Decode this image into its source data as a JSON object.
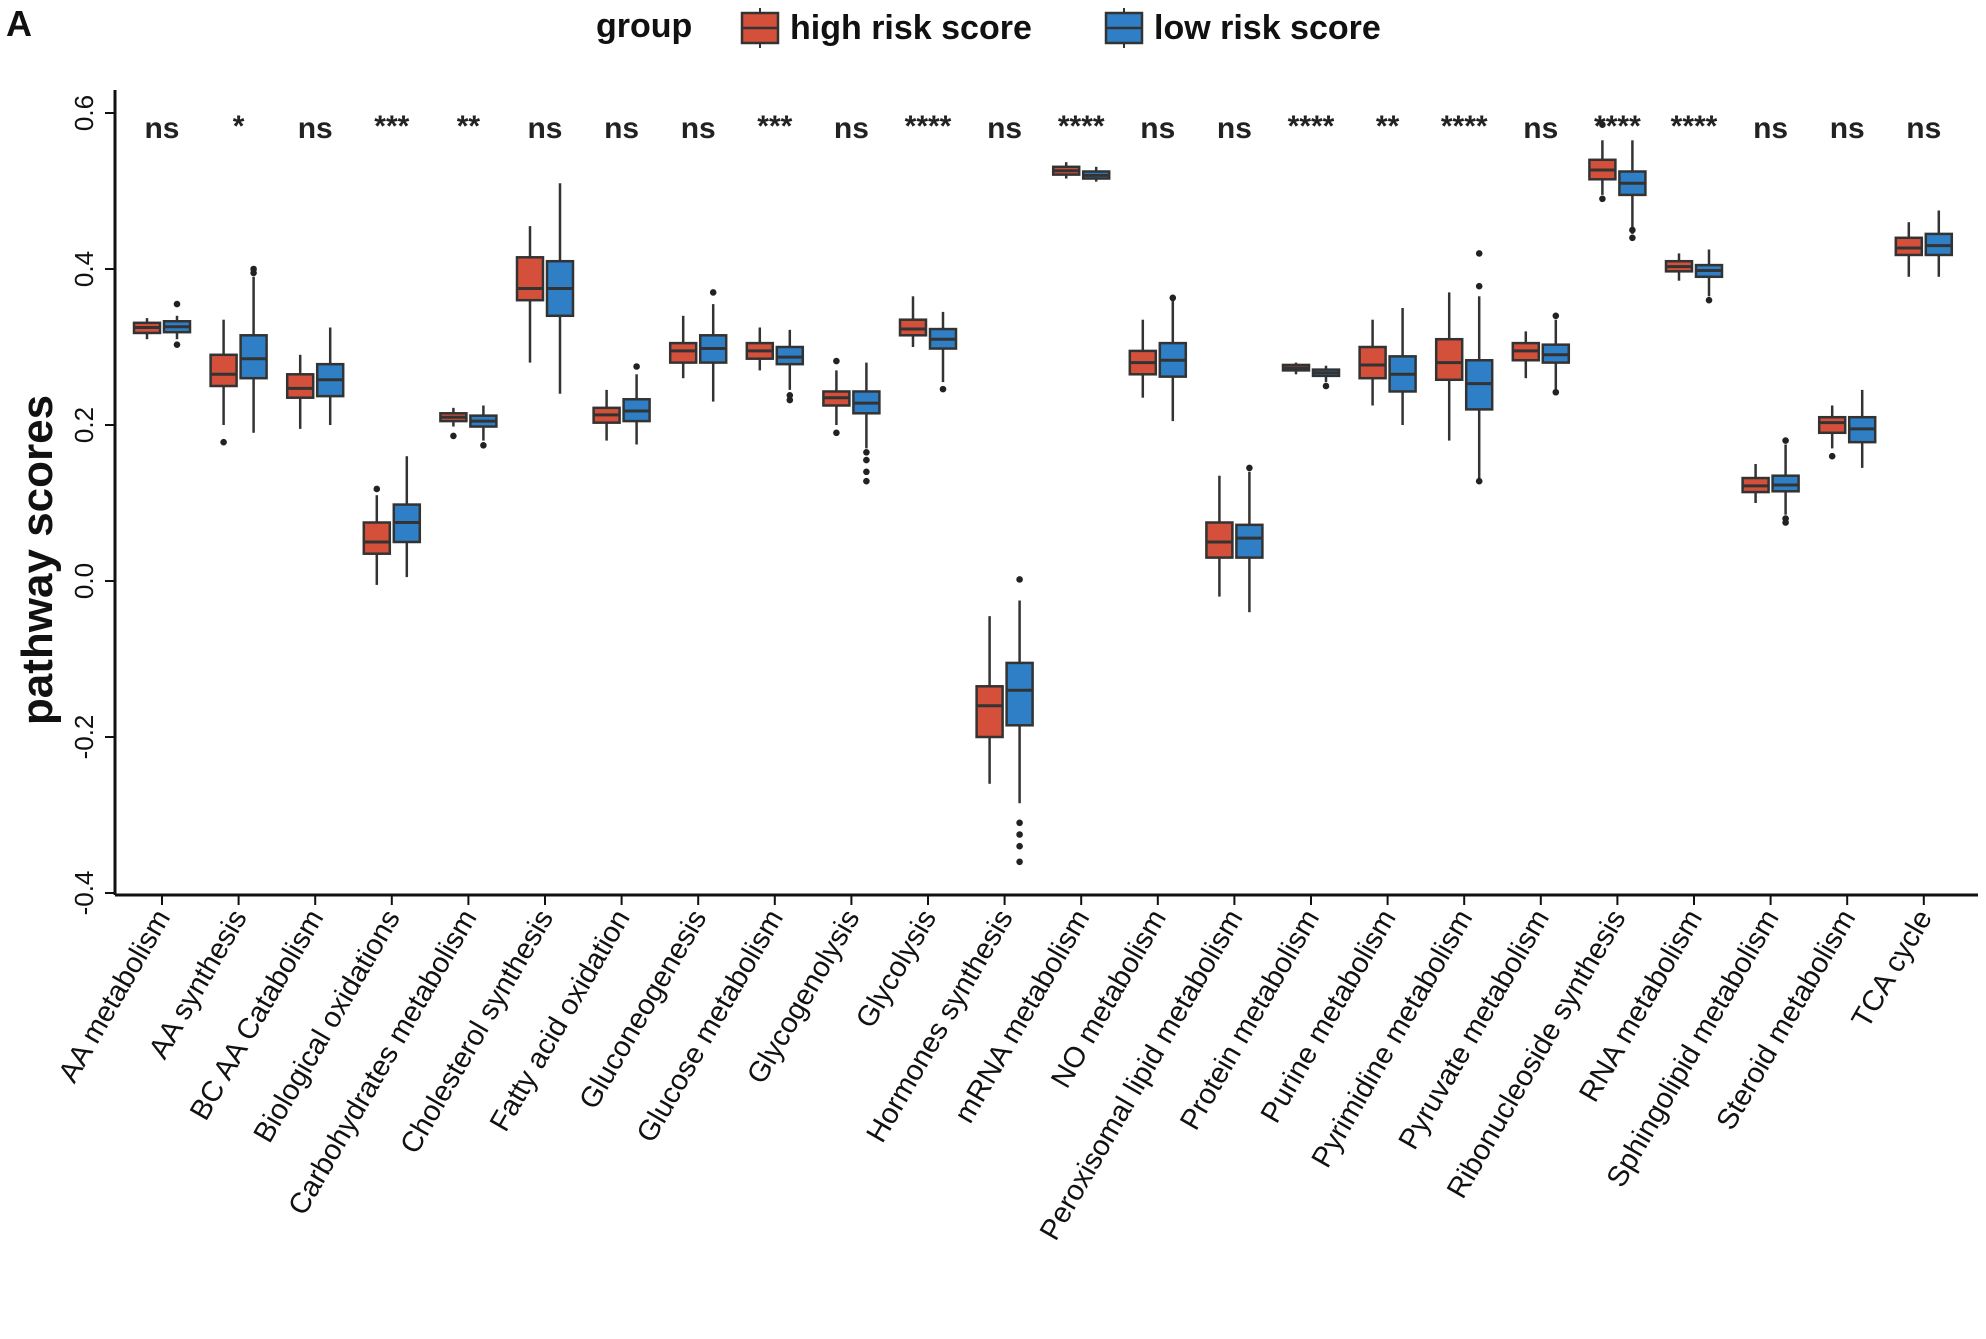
{
  "chart_data": {
    "type": "boxplot",
    "panel_label": "A",
    "legend": {
      "title": "group",
      "entries": [
        {
          "name": "high risk score",
          "color": "#d4503b"
        },
        {
          "name": "low risk score",
          "color": "#2e7fc5"
        }
      ],
      "placement": "top-center"
    },
    "ylabel": "pathway scores",
    "xlabel": "",
    "ylim": [
      -0.4,
      0.62
    ],
    "yticks": [
      -0.4,
      -0.2,
      0.0,
      0.2,
      0.4,
      0.6
    ],
    "ytick_labels": [
      "-0.4",
      "-0.2",
      "0.0",
      "0.2",
      "0.4",
      "0.6"
    ],
    "categories": [
      {
        "name": "AA metabolism",
        "sig": "ns",
        "high": {
          "wmin": 0.31,
          "q1": 0.318,
          "med": 0.325,
          "q3": 0.331,
          "wmax": 0.337,
          "out": []
        },
        "low": {
          "wmin": 0.31,
          "q1": 0.319,
          "med": 0.326,
          "q3": 0.333,
          "wmax": 0.34,
          "out": [
            0.303,
            0.355
          ]
        }
      },
      {
        "name": "AA synthesis",
        "sig": "*",
        "high": {
          "wmin": 0.2,
          "q1": 0.25,
          "med": 0.265,
          "q3": 0.29,
          "wmax": 0.335,
          "out": [
            0.178
          ]
        },
        "low": {
          "wmin": 0.19,
          "q1": 0.26,
          "med": 0.285,
          "q3": 0.315,
          "wmax": 0.39,
          "out": [
            0.4,
            0.395
          ]
        }
      },
      {
        "name": "BC AA Catabolism",
        "sig": "ns",
        "high": {
          "wmin": 0.195,
          "q1": 0.235,
          "med": 0.247,
          "q3": 0.265,
          "wmax": 0.29,
          "out": []
        },
        "low": {
          "wmin": 0.2,
          "q1": 0.237,
          "med": 0.258,
          "q3": 0.278,
          "wmax": 0.325,
          "out": []
        }
      },
      {
        "name": "Biological oxidations",
        "sig": "***",
        "high": {
          "wmin": -0.005,
          "q1": 0.035,
          "med": 0.05,
          "q3": 0.075,
          "wmax": 0.11,
          "out": [
            0.118
          ]
        },
        "low": {
          "wmin": 0.005,
          "q1": 0.05,
          "med": 0.075,
          "q3": 0.098,
          "wmax": 0.16,
          "out": []
        }
      },
      {
        "name": "Carbohydrates metabolism",
        "sig": "**",
        "high": {
          "wmin": 0.198,
          "q1": 0.205,
          "med": 0.21,
          "q3": 0.215,
          "wmax": 0.222,
          "out": [
            0.186
          ]
        },
        "low": {
          "wmin": 0.18,
          "q1": 0.198,
          "med": 0.205,
          "q3": 0.212,
          "wmax": 0.225,
          "out": [
            0.174
          ]
        }
      },
      {
        "name": "Cholesterol synthesis",
        "sig": "ns",
        "high": {
          "wmin": 0.28,
          "q1": 0.36,
          "med": 0.375,
          "q3": 0.415,
          "wmax": 0.455,
          "out": []
        },
        "low": {
          "wmin": 0.24,
          "q1": 0.34,
          "med": 0.375,
          "q3": 0.41,
          "wmax": 0.51,
          "out": []
        }
      },
      {
        "name": "Fatty acid oxidation",
        "sig": "ns",
        "high": {
          "wmin": 0.18,
          "q1": 0.203,
          "med": 0.213,
          "q3": 0.222,
          "wmax": 0.245,
          "out": []
        },
        "low": {
          "wmin": 0.175,
          "q1": 0.205,
          "med": 0.218,
          "q3": 0.233,
          "wmax": 0.265,
          "out": [
            0.275
          ]
        }
      },
      {
        "name": "Gluconeogenesis",
        "sig": "ns",
        "high": {
          "wmin": 0.26,
          "q1": 0.28,
          "med": 0.295,
          "q3": 0.305,
          "wmax": 0.34,
          "out": []
        },
        "low": {
          "wmin": 0.23,
          "q1": 0.28,
          "med": 0.298,
          "q3": 0.315,
          "wmax": 0.355,
          "out": [
            0.37
          ]
        }
      },
      {
        "name": "Glucose metabolism",
        "sig": "***",
        "high": {
          "wmin": 0.27,
          "q1": 0.285,
          "med": 0.295,
          "q3": 0.305,
          "wmax": 0.325,
          "out": []
        },
        "low": {
          "wmin": 0.245,
          "q1": 0.278,
          "med": 0.287,
          "q3": 0.3,
          "wmax": 0.322,
          "out": [
            0.238,
            0.232
          ]
        }
      },
      {
        "name": "Glycogenolysis",
        "sig": "ns",
        "high": {
          "wmin": 0.2,
          "q1": 0.225,
          "med": 0.235,
          "q3": 0.243,
          "wmax": 0.27,
          "out": [
            0.19,
            0.282
          ]
        },
        "low": {
          "wmin": 0.17,
          "q1": 0.215,
          "med": 0.228,
          "q3": 0.243,
          "wmax": 0.28,
          "out": [
            0.165,
            0.155,
            0.14,
            0.128
          ]
        }
      },
      {
        "name": "Glycolysis",
        "sig": "****",
        "high": {
          "wmin": 0.3,
          "q1": 0.315,
          "med": 0.323,
          "q3": 0.335,
          "wmax": 0.365,
          "out": []
        },
        "low": {
          "wmin": 0.255,
          "q1": 0.298,
          "med": 0.31,
          "q3": 0.323,
          "wmax": 0.345,
          "out": [
            0.246
          ]
        }
      },
      {
        "name": "Hormones synthesis",
        "sig": "ns",
        "high": {
          "wmin": -0.26,
          "q1": -0.2,
          "med": -0.16,
          "q3": -0.135,
          "wmax": -0.045,
          "out": []
        },
        "low": {
          "wmin": -0.285,
          "q1": -0.185,
          "med": -0.14,
          "q3": -0.105,
          "wmax": -0.025,
          "out": [
            0.002,
            -0.31,
            -0.325,
            -0.34,
            -0.36
          ]
        }
      },
      {
        "name": "mRNA metabolism",
        "sig": "****",
        "high": {
          "wmin": 0.516,
          "q1": 0.521,
          "med": 0.526,
          "q3": 0.531,
          "wmax": 0.537,
          "out": []
        },
        "low": {
          "wmin": 0.512,
          "q1": 0.516,
          "med": 0.52,
          "q3": 0.525,
          "wmax": 0.531,
          "out": []
        }
      },
      {
        "name": "NO metabolism",
        "sig": "ns",
        "high": {
          "wmin": 0.235,
          "q1": 0.265,
          "med": 0.28,
          "q3": 0.295,
          "wmax": 0.335,
          "out": []
        },
        "low": {
          "wmin": 0.205,
          "q1": 0.262,
          "med": 0.283,
          "q3": 0.305,
          "wmax": 0.36,
          "out": [
            0.363
          ]
        }
      },
      {
        "name": "Peroxisomal lipid metabolism",
        "sig": "ns",
        "high": {
          "wmin": -0.02,
          "q1": 0.03,
          "med": 0.05,
          "q3": 0.075,
          "wmax": 0.135,
          "out": []
        },
        "low": {
          "wmin": -0.04,
          "q1": 0.03,
          "med": 0.055,
          "q3": 0.072,
          "wmax": 0.14,
          "out": [
            0.145
          ]
        }
      },
      {
        "name": "Protein metabolism",
        "sig": "****",
        "high": {
          "wmin": 0.265,
          "q1": 0.27,
          "med": 0.273,
          "q3": 0.277,
          "wmax": 0.28,
          "out": []
        },
        "low": {
          "wmin": 0.255,
          "q1": 0.263,
          "med": 0.267,
          "q3": 0.271,
          "wmax": 0.276,
          "out": [
            0.25
          ]
        }
      },
      {
        "name": "Purine metabolism",
        "sig": "**",
        "high": {
          "wmin": 0.225,
          "q1": 0.26,
          "med": 0.277,
          "q3": 0.3,
          "wmax": 0.335,
          "out": []
        },
        "low": {
          "wmin": 0.2,
          "q1": 0.243,
          "med": 0.265,
          "q3": 0.288,
          "wmax": 0.35,
          "out": []
        }
      },
      {
        "name": "Pyrimidine metabolism",
        "sig": "****",
        "high": {
          "wmin": 0.18,
          "q1": 0.258,
          "med": 0.28,
          "q3": 0.31,
          "wmax": 0.37,
          "out": []
        },
        "low": {
          "wmin": 0.13,
          "q1": 0.22,
          "med": 0.253,
          "q3": 0.283,
          "wmax": 0.365,
          "out": [
            0.378,
            0.42,
            0.128
          ]
        }
      },
      {
        "name": "Pyruvate metabolism",
        "sig": "ns",
        "high": {
          "wmin": 0.26,
          "q1": 0.283,
          "med": 0.295,
          "q3": 0.305,
          "wmax": 0.32,
          "out": []
        },
        "low": {
          "wmin": 0.24,
          "q1": 0.28,
          "med": 0.29,
          "q3": 0.303,
          "wmax": 0.335,
          "out": [
            0.34,
            0.242
          ]
        }
      },
      {
        "name": "Ribonucleoside synthesis",
        "sig": "****",
        "high": {
          "wmin": 0.495,
          "q1": 0.515,
          "med": 0.527,
          "q3": 0.54,
          "wmax": 0.565,
          "out": [
            0.585,
            0.49
          ]
        },
        "low": {
          "wmin": 0.445,
          "q1": 0.495,
          "med": 0.51,
          "q3": 0.525,
          "wmax": 0.565,
          "out": [
            0.44,
            0.45
          ]
        }
      },
      {
        "name": "RNA metabolism",
        "sig": "****",
        "high": {
          "wmin": 0.385,
          "q1": 0.397,
          "med": 0.403,
          "q3": 0.41,
          "wmax": 0.42,
          "out": []
        },
        "low": {
          "wmin": 0.365,
          "q1": 0.39,
          "med": 0.398,
          "q3": 0.405,
          "wmax": 0.425,
          "out": [
            0.36
          ]
        }
      },
      {
        "name": "Sphingolipid metabolism",
        "sig": "ns",
        "high": {
          "wmin": 0.1,
          "q1": 0.114,
          "med": 0.122,
          "q3": 0.132,
          "wmax": 0.15,
          "out": []
        },
        "low": {
          "wmin": 0.085,
          "q1": 0.115,
          "med": 0.123,
          "q3": 0.135,
          "wmax": 0.175,
          "out": [
            0.075,
            0.08,
            0.18
          ]
        }
      },
      {
        "name": "Steroid metabolism",
        "sig": "ns",
        "high": {
          "wmin": 0.17,
          "q1": 0.19,
          "med": 0.203,
          "q3": 0.21,
          "wmax": 0.225,
          "out": [
            0.16
          ]
        },
        "low": {
          "wmin": 0.145,
          "q1": 0.178,
          "med": 0.195,
          "q3": 0.21,
          "wmax": 0.245,
          "out": []
        }
      },
      {
        "name": "TCA cycle",
        "sig": "ns",
        "high": {
          "wmin": 0.39,
          "q1": 0.418,
          "med": 0.427,
          "q3": 0.44,
          "wmax": 0.46,
          "out": []
        },
        "low": {
          "wmin": 0.39,
          "q1": 0.418,
          "med": 0.43,
          "q3": 0.445,
          "wmax": 0.475,
          "out": []
        }
      }
    ]
  }
}
